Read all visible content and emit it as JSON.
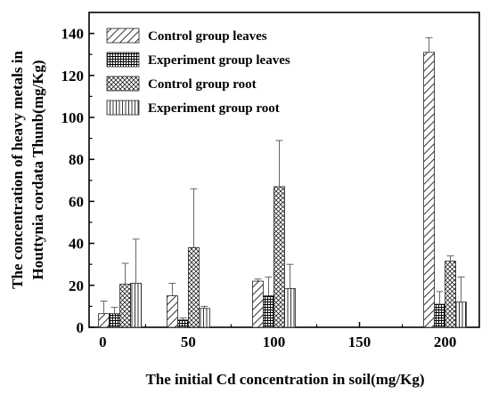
{
  "chart_data": {
    "type": "bar",
    "title": "",
    "xlabel": "The initial Cd concentration in soil(mg/Kg)",
    "ylabel": "The concentration of heavy metals in Houttynia cordata Thunb(mg/Kg)",
    "ylabel_lines": [
      "The concentration of heavy metals in",
      "Houttynia cordata Thunb(mg/Kg)"
    ],
    "xlim": [
      -8,
      220
    ],
    "ylim": [
      0,
      150
    ],
    "x_ticks": [
      0,
      50,
      100,
      150,
      200
    ],
    "y_ticks": [
      0,
      20,
      40,
      60,
      80,
      100,
      120,
      140
    ],
    "x_tick_labels": [
      "0",
      "50",
      "100",
      "150",
      "200"
    ],
    "y_tick_labels": [
      "0",
      "20",
      "40",
      "60",
      "80",
      "100",
      "120",
      "140"
    ],
    "groups": [
      10,
      50,
      100,
      200
    ],
    "legend_position": "top-left",
    "grid": false,
    "series": [
      {
        "name": "Control group leaves",
        "pattern": "diagonal",
        "values": [
          6.5,
          15,
          22,
          131
        ],
        "errors": [
          6,
          6,
          1,
          7
        ]
      },
      {
        "name": "Experiment group leaves",
        "pattern": "grid",
        "values": [
          6.5,
          3.5,
          15,
          11
        ],
        "errors": [
          3,
          1,
          9,
          6
        ]
      },
      {
        "name": "Control group root",
        "pattern": "crosshatch",
        "values": [
          20.5,
          38,
          67,
          31.5
        ],
        "errors": [
          10,
          28,
          22,
          2.5
        ]
      },
      {
        "name": "Experiment group root",
        "pattern": "vertical",
        "values": [
          21,
          9,
          18.5,
          12
        ],
        "errors": [
          21,
          1,
          11.5,
          12
        ]
      }
    ]
  }
}
